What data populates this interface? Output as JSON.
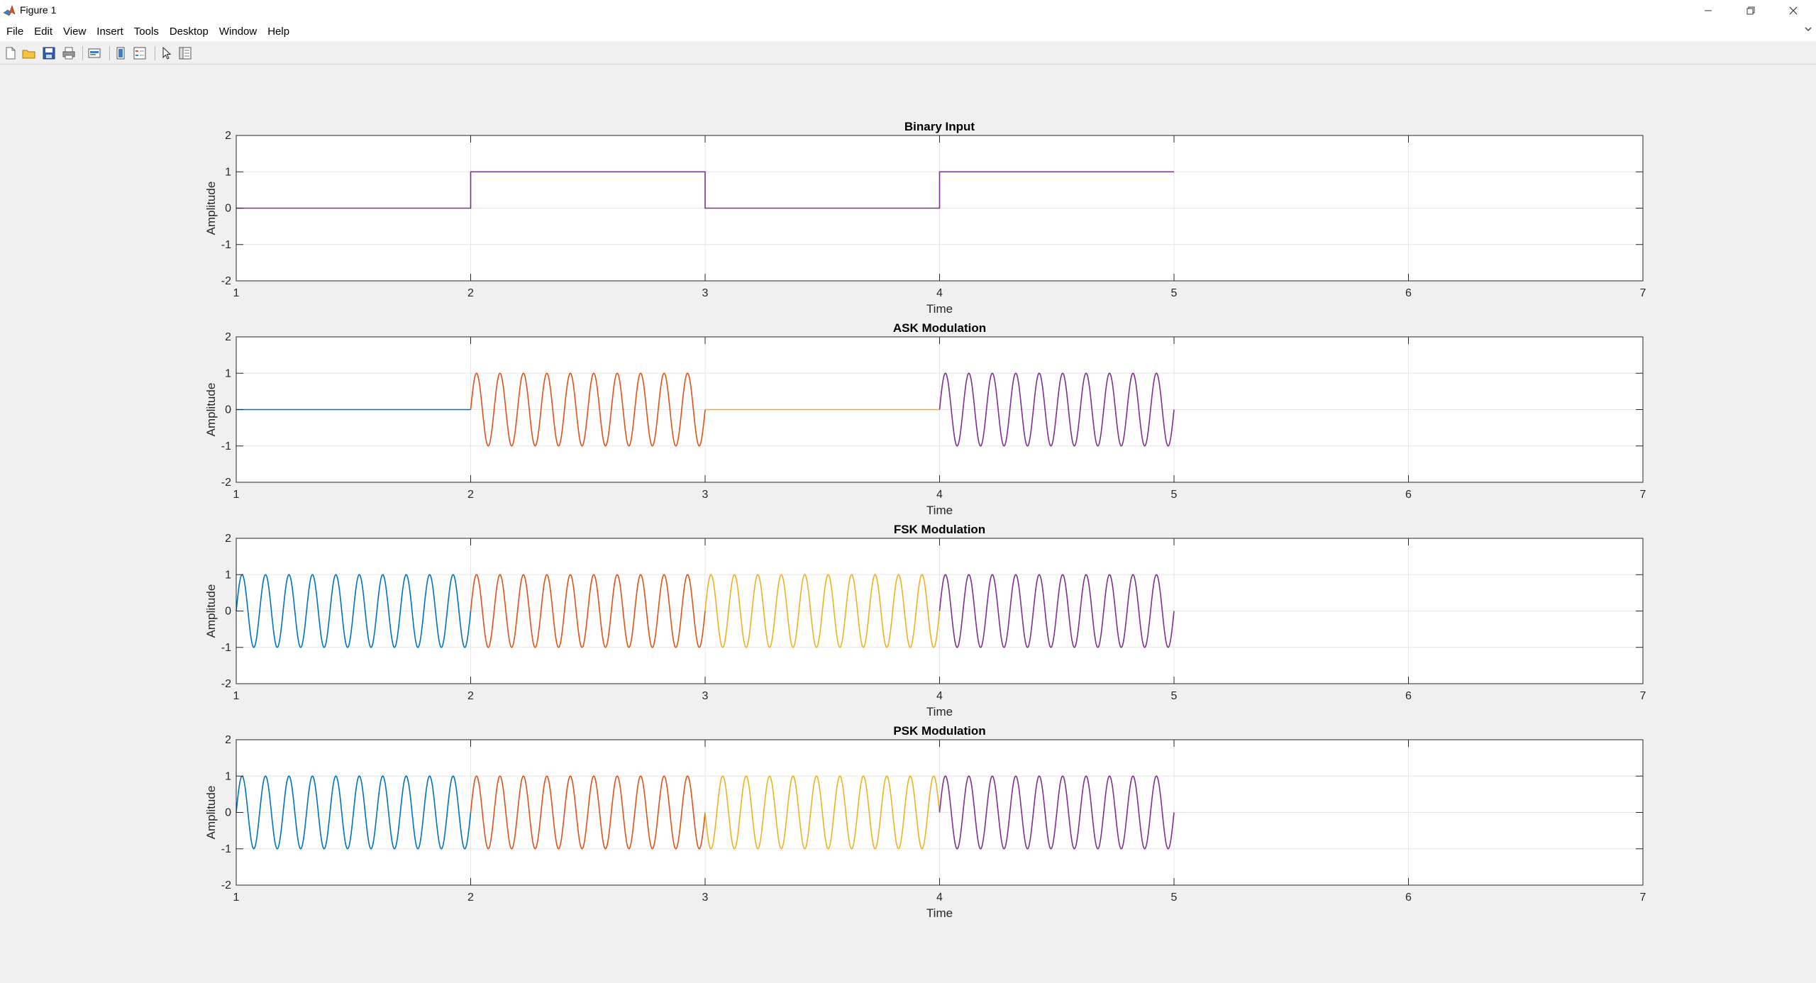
{
  "window": {
    "title": "Figure 1",
    "menus": [
      "File",
      "Edit",
      "View",
      "Insert",
      "Tools",
      "Desktop",
      "Window",
      "Help"
    ],
    "controls": [
      "minimize",
      "restore",
      "close"
    ]
  },
  "toolbar": {
    "tools": [
      "new-figure-icon",
      "open-file-icon",
      "save-icon",
      "print-icon",
      "export-icon",
      "colorbar-icon",
      "legend-icon",
      "pointer-icon",
      "property-inspector-icon"
    ]
  },
  "colors": {
    "plot_background": "#ffffff",
    "figure_background": "#f0f0f0",
    "series": [
      "#0072BD",
      "#D95319",
      "#EDB120",
      "#7E2F8E"
    ]
  },
  "chart_data": [
    {
      "type": "line",
      "title": "Binary Input",
      "xlabel": "Time",
      "ylabel": "Amplitude",
      "xlim": [
        1,
        7
      ],
      "ylim": [
        -2,
        2
      ],
      "xticks": [
        1,
        2,
        3,
        4,
        5,
        6,
        7
      ],
      "yticks": [
        -2,
        -1,
        0,
        1,
        2
      ],
      "grid": true,
      "legend": "none",
      "series": [
        {
          "color": "#7E2F8E",
          "waveform": "step",
          "x": [
            1,
            2,
            2,
            3,
            3,
            4,
            4,
            5
          ],
          "y": [
            0,
            0,
            1,
            1,
            0,
            0,
            1,
            1
          ]
        }
      ]
    },
    {
      "type": "line",
      "title": "ASK Modulation",
      "xlabel": "Time",
      "ylabel": "Amplitude",
      "xlim": [
        1,
        7
      ],
      "ylim": [
        -2,
        2
      ],
      "xticks": [
        1,
        2,
        3,
        4,
        5,
        6,
        7
      ],
      "yticks": [
        -2,
        -1,
        0,
        1,
        2
      ],
      "grid": true,
      "legend": "none",
      "series": [
        {
          "color": "#0072BD",
          "waveform": "sine",
          "x_range": [
            1,
            2
          ],
          "amplitude": 0,
          "cycles": 10,
          "phase": 0
        },
        {
          "color": "#D95319",
          "waveform": "sine",
          "x_range": [
            2,
            3
          ],
          "amplitude": 1,
          "cycles": 10,
          "phase": 0
        },
        {
          "color": "#EDB120",
          "waveform": "sine",
          "x_range": [
            3,
            4
          ],
          "amplitude": 0,
          "cycles": 10,
          "phase": 0
        },
        {
          "color": "#7E2F8E",
          "waveform": "sine",
          "x_range": [
            4,
            5
          ],
          "amplitude": 1,
          "cycles": 10,
          "phase": 0
        }
      ]
    },
    {
      "type": "line",
      "title": "FSK Modulation",
      "xlabel": "Time",
      "ylabel": "Amplitude",
      "xlim": [
        1,
        7
      ],
      "ylim": [
        -2,
        2
      ],
      "xticks": [
        1,
        2,
        3,
        4,
        5,
        6,
        7
      ],
      "yticks": [
        -2,
        -1,
        0,
        1,
        2
      ],
      "grid": true,
      "legend": "none",
      "series": [
        {
          "color": "#0072BD",
          "waveform": "sine",
          "x_range": [
            1,
            2
          ],
          "amplitude": 1,
          "cycles": 10,
          "phase": 0
        },
        {
          "color": "#D95319",
          "waveform": "sine",
          "x_range": [
            2,
            3
          ],
          "amplitude": 1,
          "cycles": 10,
          "phase": 0
        },
        {
          "color": "#EDB120",
          "waveform": "sine",
          "x_range": [
            3,
            4
          ],
          "amplitude": 1,
          "cycles": 10,
          "phase": 0
        },
        {
          "color": "#7E2F8E",
          "waveform": "sine",
          "x_range": [
            4,
            5
          ],
          "amplitude": 1,
          "cycles": 10,
          "phase": 0
        }
      ]
    },
    {
      "type": "line",
      "title": "PSK Modulation",
      "xlabel": "Time",
      "ylabel": "Amplitude",
      "xlim": [
        1,
        7
      ],
      "ylim": [
        -2,
        2
      ],
      "xticks": [
        1,
        2,
        3,
        4,
        5,
        6,
        7
      ],
      "yticks": [
        -2,
        -1,
        0,
        1,
        2
      ],
      "grid": true,
      "legend": "none",
      "series": [
        {
          "color": "#0072BD",
          "waveform": "sine",
          "x_range": [
            1,
            2
          ],
          "amplitude": 1,
          "cycles": 10,
          "phase": 0
        },
        {
          "color": "#D95319",
          "waveform": "sine",
          "x_range": [
            2,
            3
          ],
          "amplitude": 1,
          "cycles": 10,
          "phase": 0
        },
        {
          "color": "#EDB120",
          "waveform": "sine",
          "x_range": [
            3,
            4
          ],
          "amplitude": 1,
          "cycles": 10,
          "phase": 180
        },
        {
          "color": "#7E2F8E",
          "waveform": "sine",
          "x_range": [
            4,
            5
          ],
          "amplitude": 1,
          "cycles": 10,
          "phase": 0
        }
      ]
    }
  ]
}
